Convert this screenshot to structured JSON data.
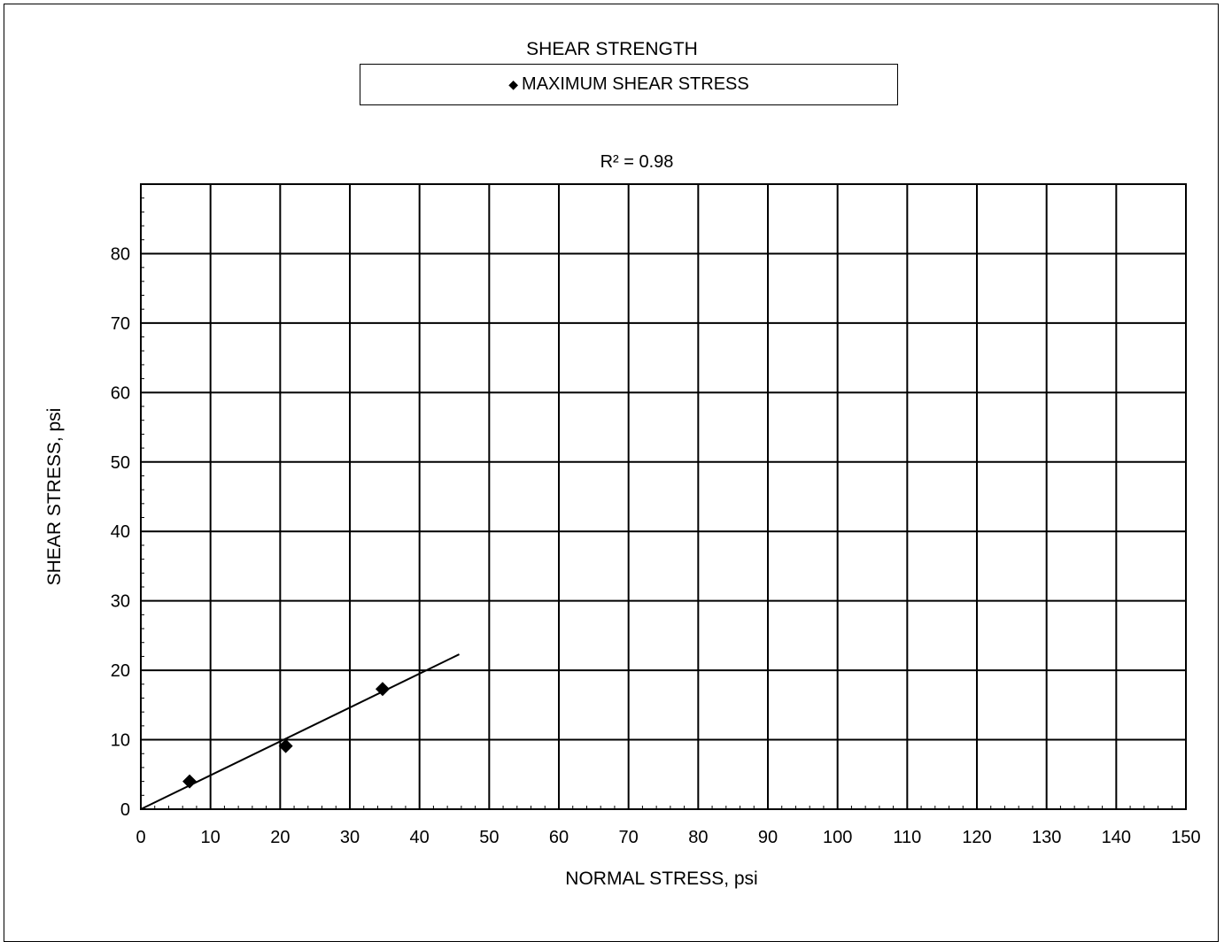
{
  "chart_data": {
    "type": "scatter",
    "title": "SHEAR STRENGTH",
    "legend": {
      "entries": [
        "MAXIMUM SHEAR STRESS"
      ],
      "placement": "top-center"
    },
    "annotation": "R² = 0.98",
    "xlabel": "NORMAL STRESS, psi",
    "ylabel": "SHEAR STRESS, psi",
    "xlim": [
      0,
      150
    ],
    "ylim": [
      0,
      90
    ],
    "xticks": [
      0,
      10,
      20,
      30,
      40,
      50,
      60,
      70,
      80,
      90,
      100,
      110,
      120,
      130,
      140,
      150
    ],
    "yticks": [
      0,
      10,
      20,
      30,
      40,
      50,
      60,
      70,
      80
    ],
    "grid": true,
    "series": [
      {
        "name": "MAXIMUM SHEAR STRESS",
        "marker": "diamond",
        "x": [
          7,
          20.8,
          34.7
        ],
        "y": [
          4.0,
          9.1,
          17.3
        ]
      }
    ],
    "trendline": {
      "x": [
        0,
        45.7
      ],
      "y": [
        0,
        22.3
      ]
    }
  }
}
